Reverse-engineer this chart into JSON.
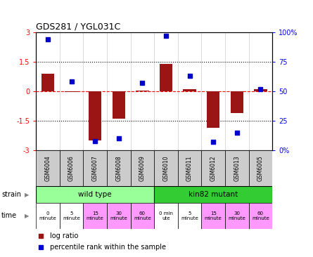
{
  "title": "GDS281 / YGL031C",
  "samples": [
    "GSM6004",
    "GSM6006",
    "GSM6007",
    "GSM6008",
    "GSM6009",
    "GSM6010",
    "GSM6011",
    "GSM6012",
    "GSM6013",
    "GSM6005"
  ],
  "log_ratio": [
    0.9,
    -0.05,
    -2.5,
    -1.4,
    0.05,
    1.4,
    0.1,
    -1.85,
    -1.1,
    0.1
  ],
  "percentile": [
    94,
    58,
    8,
    10,
    57,
    97,
    63,
    7,
    15,
    52
  ],
  "ylim": [
    -3,
    3
  ],
  "y2lim": [
    0,
    100
  ],
  "yticks": [
    -3,
    -1.5,
    0,
    1.5,
    3
  ],
  "y2ticks": [
    0,
    25,
    50,
    75,
    100
  ],
  "ytick_labels": [
    "-3",
    "-1.5",
    "0",
    "1.5",
    "3"
  ],
  "y2tick_labels": [
    "0%",
    "25",
    "50",
    "75",
    "100%"
  ],
  "bar_color": "#9B1515",
  "dot_color": "#0000CC",
  "bg_color": "#FFFFFF",
  "grid_color": "#000000",
  "zero_line_color": "#FF0000",
  "strain_wt_color": "#99FF99",
  "strain_mut_color": "#33CC33",
  "time_white_color": "#FFFFFF",
  "time_pink_color": "#FF99FF",
  "sample_box_color": "#CCCCCC",
  "strain_row": [
    "wild type",
    "kin82 mutant"
  ],
  "time_labels_wt": [
    "0\nminute",
    "5\nminute",
    "15\nminute",
    "30\nminute",
    "60\nminute"
  ],
  "time_labels_mut": [
    "0 min\nute",
    "5\nminute",
    "15\nminute",
    "30\nminute",
    "60\nminute"
  ],
  "time_colors_wt": [
    "#FFFFFF",
    "#FFFFFF",
    "#FF99FF",
    "#FF99FF",
    "#FF99FF"
  ],
  "time_colors_mut": [
    "#FFFFFF",
    "#FFFFFF",
    "#FF99FF",
    "#FF99FF",
    "#FF99FF"
  ],
  "legend_log_ratio": "log ratio",
  "legend_percentile": "percentile rank within the sample",
  "bar_width": 0.55
}
